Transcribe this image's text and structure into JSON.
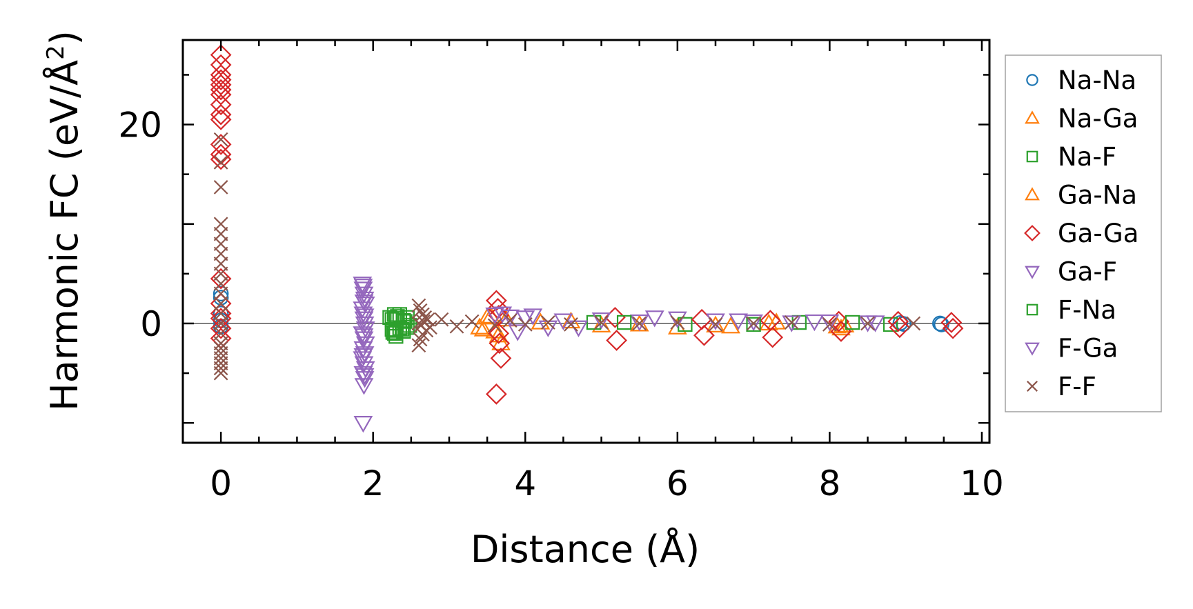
{
  "chart_data": {
    "type": "scatter",
    "xlabel": "Distance (Å)",
    "ylabel_main": "Harmonic FC (eV/Å",
    "ylabel_sup": "2",
    "ylabel_close": ")",
    "xlim": [
      -0.5,
      10.1
    ],
    "ylim": [
      -12,
      28.5
    ],
    "xticks": [
      0,
      2,
      4,
      6,
      8,
      10
    ],
    "yticks": [
      0,
      20
    ],
    "legend_position": "outside-right",
    "zero_line": true,
    "series": [
      {
        "name": "Na-Na",
        "marker": "circle",
        "color": "#1f77b4",
        "x": [
          0,
          0,
          0,
          0,
          0,
          8.93,
          8.97,
          9.45,
          9.47
        ],
        "y": [
          3.0,
          2.6,
          1.0,
          0.3,
          -0.3,
          0.05,
          -0.05,
          0.0,
          -0.1
        ]
      },
      {
        "name": "Na-Ga",
        "marker": "triangle-up",
        "color": "#ff7f0e",
        "x": [
          3.45,
          3.55,
          3.6,
          3.68,
          3.75,
          4.2,
          5.0,
          6.0,
          6.7,
          7.3,
          8.1,
          8.15
        ],
        "y": [
          -0.6,
          0.7,
          -0.8,
          -2.0,
          0.4,
          0.1,
          -0.2,
          -0.4,
          -0.3,
          0.1,
          -0.3,
          -0.5
        ]
      },
      {
        "name": "Na-F",
        "marker": "square",
        "color": "#2ca02c",
        "x": [
          2.25,
          2.25,
          2.28,
          2.28,
          2.3,
          2.3,
          2.35,
          2.35,
          2.4,
          2.4,
          2.45,
          2.45,
          2.3,
          4.9,
          6.1,
          7.6,
          8.8
        ],
        "y": [
          0.4,
          -0.6,
          0.9,
          -1.0,
          0.5,
          -0.7,
          0.9,
          -0.5,
          0.3,
          -0.8,
          0.6,
          -0.4,
          -1.3,
          0.1,
          -0.1,
          0.1,
          -0.1
        ]
      },
      {
        "name": "Ga-Na",
        "marker": "triangle-up",
        "color": "#ff7f0e",
        "x": [
          3.4,
          3.5,
          3.65,
          4.6,
          5.5,
          6.5,
          7.2,
          8.2
        ],
        "y": [
          -0.4,
          0.6,
          -1.2,
          0.2,
          -0.1,
          -0.2,
          0.0,
          -0.2
        ]
      },
      {
        "name": "Ga-Ga",
        "marker": "diamond",
        "color": "#d62728",
        "x": [
          0,
          0,
          0,
          0,
          0,
          0,
          0,
          0,
          0,
          0,
          0,
          0,
          0,
          0,
          0,
          0,
          0,
          0,
          0,
          3.62,
          3.64,
          3.65,
          3.66,
          3.68,
          3.62,
          3.65,
          5.18,
          5.2,
          6.32,
          6.35,
          7.22,
          7.25,
          8.12,
          8.15,
          8.9,
          8.92,
          9.6,
          9.62
        ],
        "y": [
          27,
          26,
          25,
          24.5,
          24,
          23.5,
          23,
          22,
          21,
          20.5,
          18,
          17,
          16.5,
          4.5,
          2.0,
          1.0,
          0.5,
          -0.5,
          -1.5,
          2.3,
          1.5,
          -1.0,
          -2.0,
          -3.5,
          -7.1,
          0.8,
          0.6,
          -1.7,
          0.4,
          -1.2,
          0.3,
          -1.4,
          0.2,
          -0.8,
          0.2,
          -0.4,
          0.1,
          -0.5
        ]
      },
      {
        "name": "Ga-F",
        "marker": "triangle-down",
        "color": "#9467bd",
        "x": [
          1.86,
          1.87,
          1.88,
          1.89,
          1.9,
          1.86,
          1.87,
          1.88,
          1.89,
          1.9,
          1.86,
          1.88,
          1.9,
          1.87,
          1.89,
          1.86,
          1.88,
          1.9,
          1.87,
          1.89,
          1.88,
          1.87,
          3.7,
          3.8,
          3.9,
          4.0,
          4.3,
          4.5,
          5.0,
          5.5,
          6.0,
          6.5,
          7.0,
          7.5,
          8.0,
          8.5
        ],
        "y": [
          4.0,
          3.5,
          3.0,
          2.5,
          2.0,
          1.5,
          1.0,
          0.5,
          0.0,
          -0.5,
          -1.0,
          -1.5,
          -2.0,
          -2.5,
          -3.0,
          -3.5,
          -4.0,
          -4.5,
          -5.0,
          -5.5,
          -6.2,
          -10.0,
          1.0,
          0.7,
          -0.8,
          0.6,
          -0.4,
          0.3,
          0.4,
          0.2,
          0.5,
          0.3,
          0.2,
          0.1,
          0.2,
          0.1
        ]
      },
      {
        "name": "F-Na",
        "marker": "square",
        "color": "#2ca02c",
        "x": [
          2.22,
          2.26,
          2.32,
          2.38,
          2.42,
          2.48,
          5.3,
          7.0,
          8.3
        ],
        "y": [
          0.6,
          -0.9,
          0.7,
          -0.6,
          0.2,
          -0.2,
          0.1,
          -0.1,
          0.1
        ]
      },
      {
        "name": "F-Ga",
        "marker": "triangle-down",
        "color": "#9467bd",
        "x": [
          1.87,
          1.88,
          1.89,
          1.88,
          1.87,
          1.89,
          3.6,
          4.1,
          4.7,
          5.7,
          6.8,
          7.8,
          8.6
        ],
        "y": [
          3.8,
          2.2,
          0.8,
          -1.2,
          -3.2,
          -5.2,
          0.9,
          0.8,
          -0.4,
          0.6,
          0.3,
          0.2,
          0.1
        ]
      },
      {
        "name": "F-F",
        "marker": "x",
        "color": "#8c564b",
        "x": [
          0,
          0,
          0,
          0,
          0,
          0,
          0,
          0,
          0,
          0,
          0,
          0,
          0,
          0,
          0,
          0,
          0,
          0,
          0,
          0,
          0,
          0,
          2.6,
          2.6,
          2.62,
          2.62,
          2.65,
          2.65,
          2.68,
          2.7,
          2.72,
          2.75,
          2.6,
          2.63,
          2.66,
          2.9,
          3.1,
          3.3,
          3.6,
          3.8,
          4.0,
          4.3,
          4.6,
          5.0,
          5.5,
          6.0,
          6.5,
          7.0,
          7.5,
          8.0,
          8.5,
          9.1
        ],
        "y": [
          18.5,
          16.2,
          13.7,
          10.0,
          9.0,
          8.0,
          7.0,
          6.0,
          5.0,
          4.0,
          3.0,
          2.0,
          1.0,
          0.0,
          -1.0,
          -2.0,
          -3.0,
          -3.5,
          -4.0,
          -4.5,
          -5.0,
          -2.5,
          1.8,
          -2.2,
          1.3,
          -1.6,
          0.9,
          -1.1,
          0.6,
          -0.7,
          0.4,
          -0.4,
          0.0,
          -0.2,
          0.2,
          0.4,
          -0.3,
          0.2,
          -0.2,
          0.3,
          -0.1,
          0.1,
          -0.1,
          0.1,
          0.0,
          0.1,
          -0.1,
          0.0,
          0.1,
          -0.1,
          0.0,
          0.0
        ]
      }
    ]
  }
}
